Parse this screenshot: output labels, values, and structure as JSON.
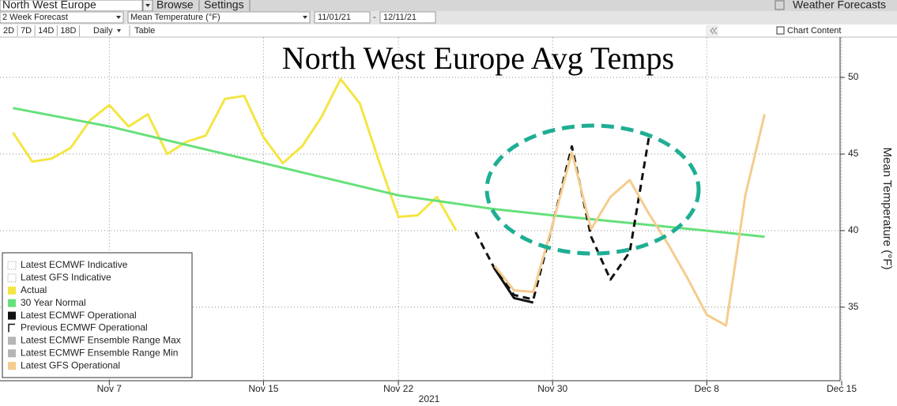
{
  "toolbar": {
    "region": "North West Europe",
    "browse": "Browse",
    "settings": "Settings",
    "app": "Weather Forecasts",
    "forecast": "2 Week Forecast",
    "variable": "Mean Temperature (°F)",
    "start": "11/01/21",
    "end": "12/11/21",
    "periods": [
      "2D",
      "7D",
      "14D",
      "18D"
    ],
    "frequency": "Daily",
    "table": "Table",
    "chart_content": "Chart Content"
  },
  "chart_data": {
    "type": "line",
    "title": "North West Europe Avg Temps",
    "x_label": "2021",
    "y_label": "Mean Temperature (°F)",
    "xlim": [
      "2021-11-01",
      "2021-12-15"
    ],
    "xticks": [
      {
        "value": "2021-11-07",
        "label": "Nov 7"
      },
      {
        "value": "2021-11-15",
        "label": "Nov 15"
      },
      {
        "value": "2021-11-22",
        "label": "Nov 22"
      },
      {
        "value": "2021-11-30",
        "label": "Nov 30"
      },
      {
        "value": "2021-12-08",
        "label": "Dec 8"
      },
      {
        "value": "2021-12-15",
        "label": "Dec 15"
      }
    ],
    "ylim": [
      30.2,
      52.6
    ],
    "yticks": [
      35,
      40,
      45,
      50
    ],
    "grid": true,
    "legend": "bottom-left",
    "series": [
      {
        "name": "Latest ECMWF Indicative",
        "color": "#999999",
        "style": "indicative",
        "x": [],
        "values": []
      },
      {
        "name": "Latest GFS Indicative",
        "color": "#999999",
        "style": "indicative",
        "x": [],
        "values": []
      },
      {
        "name": "Actual",
        "color": "#f4e542",
        "style": "line",
        "x": [
          "2021-11-02",
          "2021-11-03",
          "2021-11-04",
          "2021-11-05",
          "2021-11-06",
          "2021-11-07",
          "2021-11-08",
          "2021-11-09",
          "2021-11-10",
          "2021-11-11",
          "2021-11-12",
          "2021-11-13",
          "2021-11-14",
          "2021-11-15",
          "2021-11-16",
          "2021-11-17",
          "2021-11-18",
          "2021-11-19",
          "2021-11-20",
          "2021-11-21",
          "2021-11-22",
          "2021-11-23",
          "2021-11-24",
          "2021-11-25"
        ],
        "values": [
          46.4,
          44.5,
          44.7,
          45.4,
          47.2,
          48.2,
          46.8,
          47.6,
          45.0,
          45.8,
          46.2,
          48.6,
          48.8,
          46.1,
          44.4,
          45.5,
          47.4,
          49.9,
          48.3,
          44.5,
          40.9,
          41.0,
          42.2,
          40.0
        ]
      },
      {
        "name": "30 Year Normal",
        "color": "#66e07a",
        "style": "line",
        "x": [
          "2021-11-02",
          "2021-11-07",
          "2021-11-11",
          "2021-11-15",
          "2021-11-18",
          "2021-11-22",
          "2021-11-27",
          "2021-11-30",
          "2021-12-08",
          "2021-12-11"
        ],
        "values": [
          48.0,
          46.8,
          45.6,
          44.4,
          43.5,
          42.3,
          41.4,
          41.0,
          40.0,
          39.6
        ]
      },
      {
        "name": "Latest ECMWF Operational",
        "color": "#111111",
        "style": "line",
        "x": [
          "2021-11-27",
          "2021-11-28",
          "2021-11-29"
        ],
        "values": [
          37.5,
          35.6,
          35.3
        ]
      },
      {
        "name": "Previous ECMWF Operational",
        "color": "#111111",
        "style": "dashed",
        "x": [
          "2021-11-26",
          "2021-11-27",
          "2021-11-28",
          "2021-11-29",
          "2021-11-30",
          "2021-12-01",
          "2021-12-02",
          "2021-12-03",
          "2021-12-04",
          "2021-12-05"
        ],
        "values": [
          39.9,
          37.5,
          35.8,
          35.5,
          40.4,
          45.5,
          39.6,
          36.8,
          38.6,
          46.1
        ]
      },
      {
        "name": "Latest ECMWF Ensemble Range Max",
        "color": "#b5b5b5",
        "style": "line",
        "x": [],
        "values": []
      },
      {
        "name": "Latest ECMWF Ensemble Range Min",
        "color": "#b5b5b5",
        "style": "line",
        "x": [],
        "values": []
      },
      {
        "name": "Latest GFS Operational",
        "color": "#f5cc8e",
        "style": "line",
        "x": [
          "2021-11-27",
          "2021-11-28",
          "2021-11-29",
          "2021-11-30",
          "2021-12-01",
          "2021-12-02",
          "2021-12-03",
          "2021-12-04",
          "2021-12-05",
          "2021-12-06",
          "2021-12-07",
          "2021-12-08",
          "2021-12-09",
          "2021-12-10",
          "2021-12-11"
        ],
        "values": [
          37.7,
          36.1,
          36.0,
          40.4,
          45.1,
          40.1,
          42.2,
          43.3,
          41.1,
          39.1,
          36.9,
          34.5,
          33.8,
          42.3,
          47.6
        ]
      }
    ]
  }
}
